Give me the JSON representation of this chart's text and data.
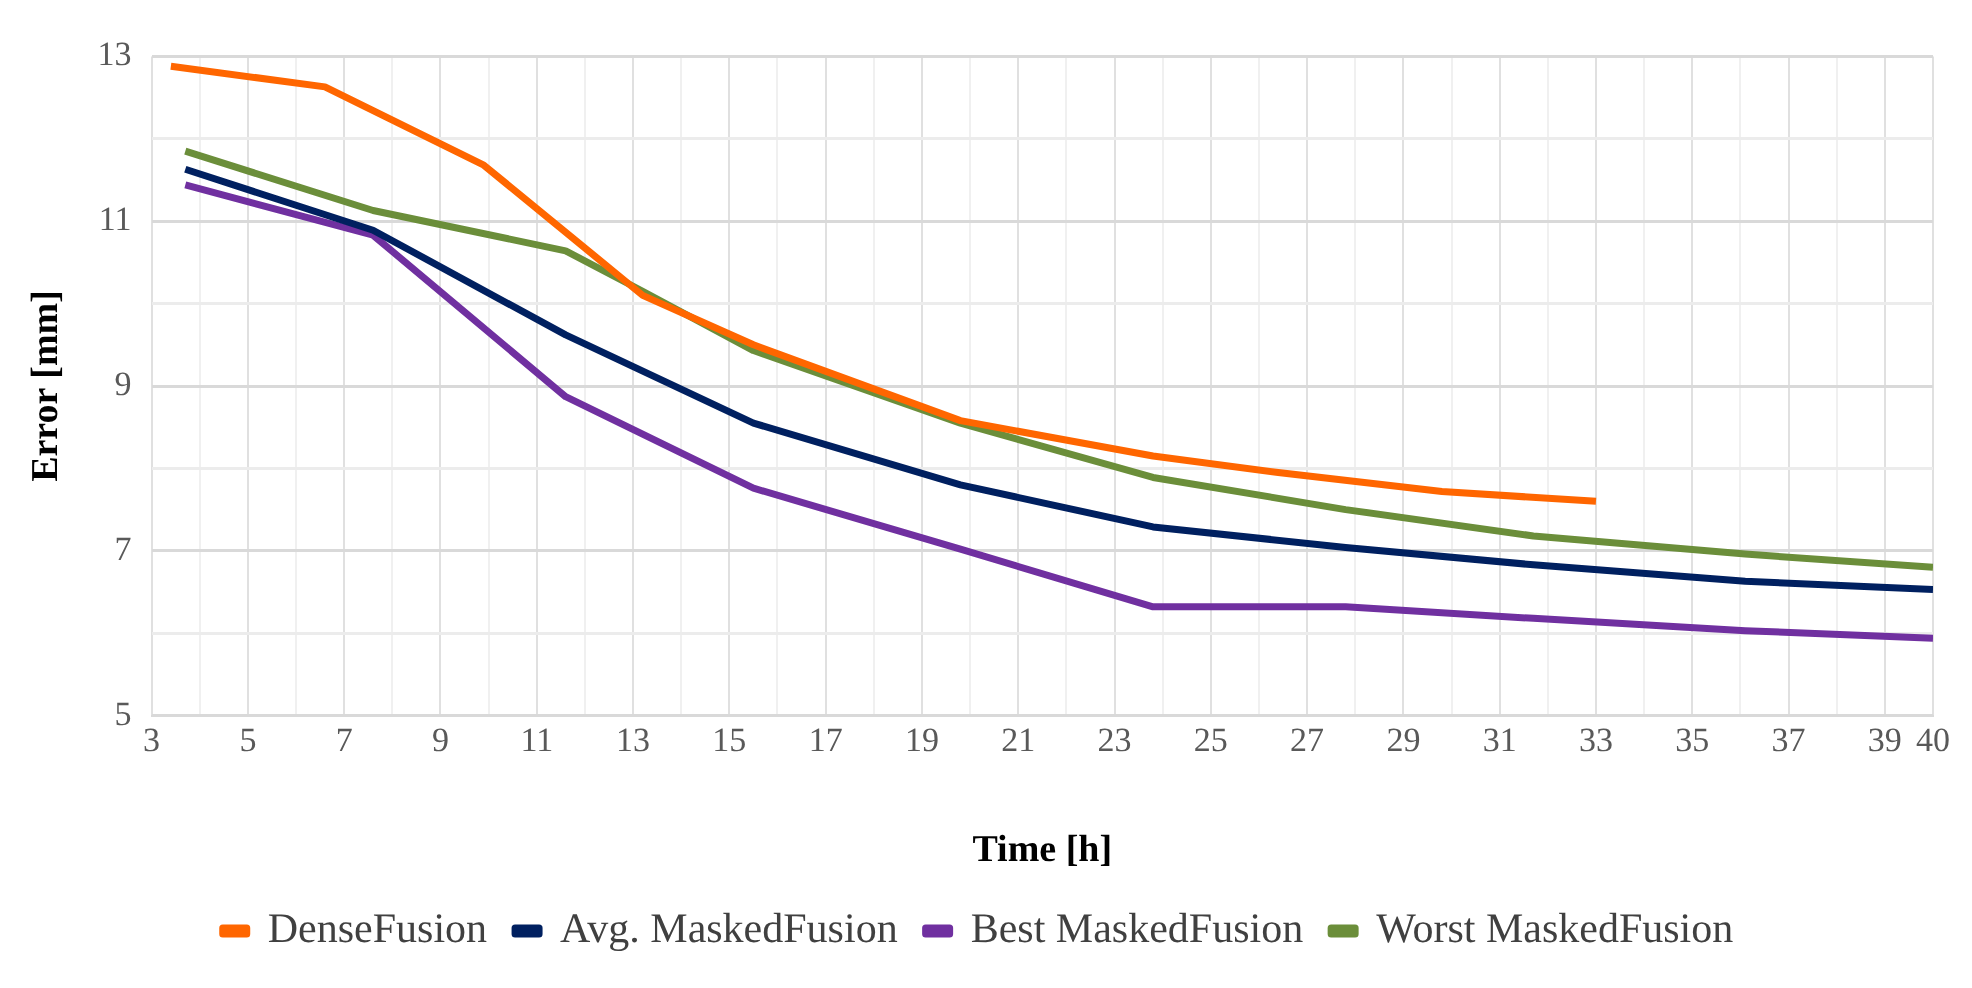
{
  "chart_data": {
    "type": "line",
    "xlabel": "Time [h]",
    "ylabel": "Error [mm]",
    "xlim": [
      3,
      40
    ],
    "xticks": [
      3,
      {
        "value": 4,
        "label": null
      },
      5,
      {
        "value": 6,
        "label": null
      },
      7,
      {
        "value": 8,
        "label": null
      },
      9,
      {
        "value": 10,
        "label": null
      },
      11,
      {
        "value": 12,
        "label": null
      },
      13,
      {
        "value": 14,
        "label": null
      },
      15,
      {
        "value": 16,
        "label": null
      },
      17,
      {
        "value": 18,
        "label": null
      },
      19,
      {
        "value": 20,
        "label": null
      },
      21,
      {
        "value": 22,
        "label": null
      },
      23,
      {
        "value": 24,
        "label": null
      },
      25,
      {
        "value": 26,
        "label": null
      },
      27,
      {
        "value": 28,
        "label": null
      },
      29,
      {
        "value": 30,
        "label": null
      },
      31,
      {
        "value": 32,
        "label": null
      },
      33,
      {
        "value": 34,
        "label": null
      },
      35,
      {
        "value": 36,
        "label": null
      },
      37,
      {
        "value": 38,
        "label": null
      },
      39,
      40
    ],
    "ylim": [
      5,
      13
    ],
    "yticks": [
      5,
      {
        "value": 6,
        "label": null
      },
      7,
      {
        "value": 8,
        "label": null
      },
      9,
      {
        "value": 10,
        "label": null
      },
      11,
      {
        "value": 12,
        "label": null
      },
      13
    ],
    "grid": true,
    "legend": "bottom",
    "marker": "none",
    "line_style": "solid",
    "series": [
      {
        "name": "DenseFusion",
        "color": "#ff6600",
        "x": [
          3.4,
          6.6,
          9.9,
          13.2,
          15.5,
          19.8,
          23.8,
          26.4,
          29.8,
          33
        ],
        "values": [
          12.88,
          12.63,
          11.68,
          10.1,
          9.5,
          8.58,
          8.15,
          7.95,
          7.72,
          7.6
        ]
      },
      {
        "name": "Avg. MaskedFusion",
        "color": "#002060",
        "x": [
          3.7,
          7.6,
          11.6,
          15.5,
          19.8,
          23.8,
          27.8,
          31.7,
          36.1,
          40
        ],
        "values": [
          11.63,
          10.89,
          9.62,
          8.55,
          7.8,
          7.29,
          7.04,
          6.83,
          6.63,
          6.53
        ]
      },
      {
        "name": "Best MaskedFusion",
        "color": "#7030a0",
        "x": [
          3.7,
          7.6,
          11.6,
          15.5,
          19.8,
          23.8,
          27.8,
          31.7,
          36.1,
          40
        ],
        "values": [
          11.44,
          10.83,
          8.87,
          7.76,
          7.02,
          6.32,
          6.32,
          6.18,
          6.03,
          5.94
        ]
      },
      {
        "name": "Worst MaskedFusion",
        "color": "#6b8e3a",
        "x": [
          3.7,
          7.6,
          11.6,
          13.2,
          15.5,
          19.8,
          23.8,
          27.8,
          31.7,
          36.1,
          40
        ],
        "values": [
          11.85,
          11.13,
          10.64,
          10.15,
          9.43,
          8.55,
          7.89,
          7.5,
          7.18,
          6.96,
          6.8
        ]
      }
    ]
  }
}
